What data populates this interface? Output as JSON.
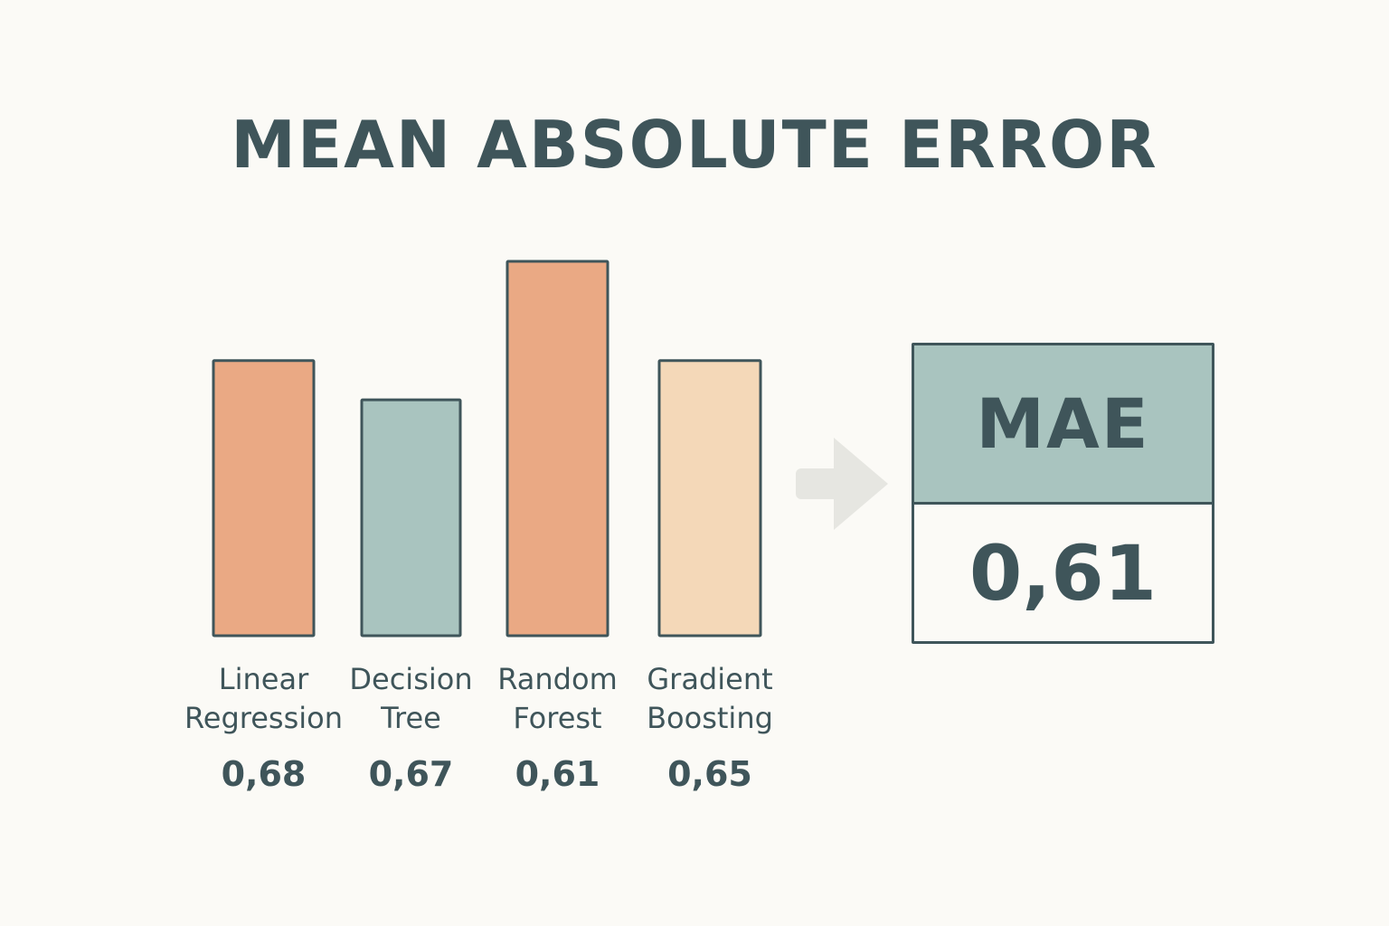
{
  "chart_data": {
    "type": "bar",
    "title": "MEAN ABSOLUTE ERROR",
    "categories": [
      "Linear\nRegression",
      "Decision\nTree",
      "Random\nForest",
      "Gradient\nBoosting"
    ],
    "values": [
      0.68,
      0.67,
      0.61,
      0.65
    ],
    "value_labels": [
      "0,68",
      "0,67",
      "0,61",
      "0,65"
    ],
    "bar_colors": [
      "#eaa984",
      "#a9c4bf",
      "#eaa984",
      "#f4d8b8"
    ],
    "bar_heights_drawn": [
      0.735,
      0.63,
      1.0,
      0.735
    ],
    "xlabel": "",
    "ylabel": "",
    "grid": false,
    "legend": "none"
  },
  "summary": {
    "label": "MAE",
    "value": "0,61",
    "header_color": "#a9c4bf"
  },
  "colors": {
    "background": "#fbfaf6",
    "outline": "#3f555a",
    "arrow": "#e6e6e1"
  },
  "icons": {
    "arrow": "arrow-right-icon"
  }
}
